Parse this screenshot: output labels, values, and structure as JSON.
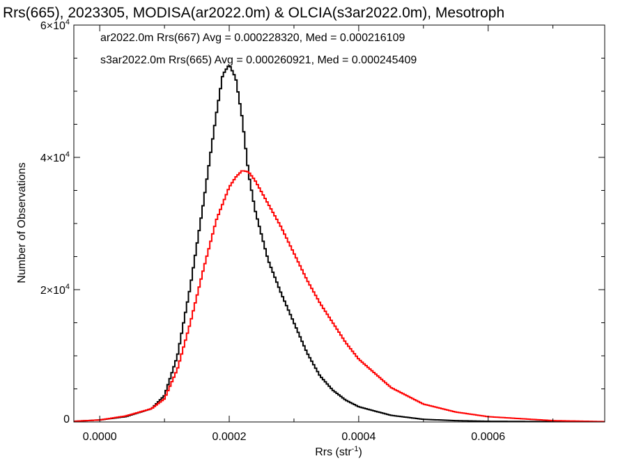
{
  "chart_data": {
    "type": "line",
    "title": "Rrs(665), 2023305, MODISA(ar2022.0m) & OLCIA(s3ar2022.0m), Mesotroph",
    "xlabel": "Rrs (str",
    "xlabel_sup": "-1",
    "xlabel_end": ")",
    "ylabel": "Number of Observations",
    "xlim": [
      -4e-05,
      0.00078
    ],
    "ylim": [
      0,
      60000
    ],
    "x_ticks": [
      {
        "value": 0.0,
        "label": "0.0000"
      },
      {
        "value": 0.0002,
        "label": "0.0002"
      },
      {
        "value": 0.0004,
        "label": "0.0004"
      },
      {
        "value": 0.0006,
        "label": "0.0006"
      }
    ],
    "y_ticks": [
      {
        "value": 0,
        "mant": "0",
        "exp": ""
      },
      {
        "value": 20000,
        "mant": "2×10",
        "exp": "4"
      },
      {
        "value": 40000,
        "mant": "4×10",
        "exp": "4"
      },
      {
        "value": 60000,
        "mant": "6×10",
        "exp": "4"
      }
    ],
    "annotations": [
      {
        "text": "ar2022.0m Rrs(667) Avg = 0.000228320, Med = 0.000216109",
        "color": "#000000"
      },
      {
        "text": "s3ar2022.0m Rrs(665) Avg = 0.000260921, Med = 0.000245409",
        "color": "#ff0000"
      }
    ],
    "series": [
      {
        "color": "#000000",
        "x": [
          -4e-05,
          0.0,
          4e-05,
          8e-05,
          0.0001,
          0.00012,
          0.00014,
          0.00016,
          0.00018,
          0.00019,
          0.0002,
          0.00021,
          0.00022,
          0.00023,
          0.00024,
          0.00026,
          0.00028,
          0.0003,
          0.00032,
          0.00034,
          0.00036,
          0.00038,
          0.0004,
          0.00045,
          0.0005,
          0.00055,
          0.0006,
          0.0007,
          0.00078
        ],
        "values": [
          100,
          300,
          800,
          2000,
          4000,
          10000,
          20500,
          33000,
          46500,
          52500,
          54000,
          52000,
          46000,
          37500,
          32000,
          24500,
          19500,
          15000,
          10500,
          7000,
          4800,
          3300,
          2300,
          1000,
          400,
          200,
          100,
          50,
          20
        ]
      },
      {
        "color": "#ff0000",
        "x": [
          -4e-05,
          0.0,
          4e-05,
          8e-05,
          0.0001,
          0.00012,
          0.00014,
          0.00016,
          0.00018,
          0.0002,
          0.00021,
          0.00022,
          0.00023,
          0.00024,
          0.00026,
          0.00028,
          0.0003,
          0.00032,
          0.00034,
          0.00036,
          0.00038,
          0.0004,
          0.00045,
          0.0005,
          0.00055,
          0.0006,
          0.0007,
          0.00078
        ],
        "values": [
          100,
          300,
          900,
          2000,
          3500,
          8000,
          15000,
          23000,
          30500,
          35500,
          37000,
          38000,
          37800,
          36500,
          33000,
          29500,
          25500,
          21500,
          18000,
          15000,
          12000,
          9500,
          5200,
          2700,
          1500,
          800,
          200,
          50
        ]
      }
    ]
  }
}
